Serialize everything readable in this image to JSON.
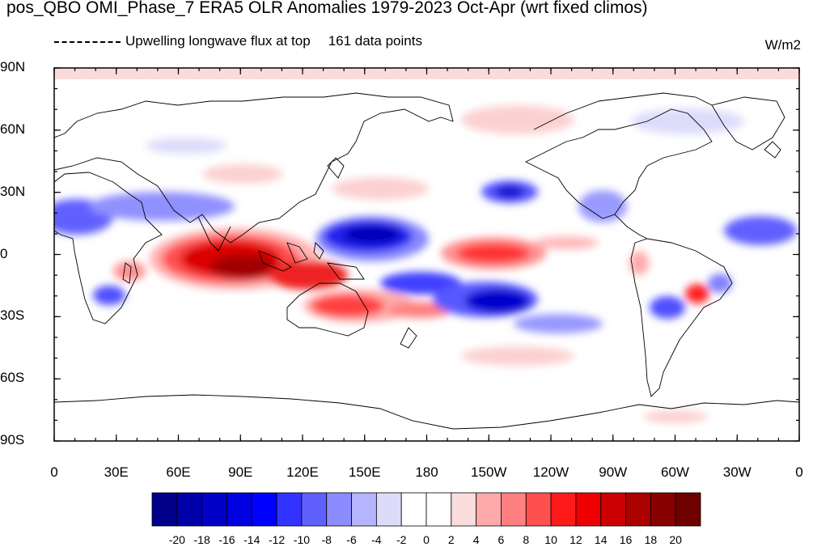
{
  "title": "pos_QBO OMI_Phase_7 ERA5 OLR Anomalies 1979-2023 Oct-Apr (wrt fixed climos)",
  "legend_line": "Upwelling longwave flux at top",
  "data_points": "161 data points",
  "units": "W/m2",
  "colors": {
    "positive": "#d40000",
    "negative": "#0000d0"
  },
  "lat_labels": [
    "90N",
    "60N",
    "30N",
    "0",
    "30S",
    "60S",
    "90S"
  ],
  "lon_labels": [
    "0",
    "30E",
    "60E",
    "90E",
    "120E",
    "150E",
    "180",
    "150W",
    "120W",
    "90W",
    "60W",
    "30W",
    "0"
  ],
  "colorbar": {
    "labels": [
      "-20",
      "-18",
      "-16",
      "-14",
      "-12",
      "-10",
      "-8",
      "-6",
      "-4",
      "-2",
      "0",
      "2",
      "4",
      "6",
      "8",
      "10",
      "12",
      "14",
      "16",
      "18",
      "20"
    ],
    "colors": [
      "#00008b",
      "#0000a8",
      "#0000c6",
      "#0000e0",
      "#0000ff",
      "#3333ff",
      "#6060ff",
      "#8c8cff",
      "#b4b4ff",
      "#dcdcfa",
      "#ffffff",
      "#ffffff",
      "#fadcdc",
      "#ffaaaa",
      "#ff8080",
      "#ff5050",
      "#ff1a1a",
      "#ee0000",
      "#cc0000",
      "#aa0000",
      "#880000",
      "#6e0000"
    ]
  }
}
